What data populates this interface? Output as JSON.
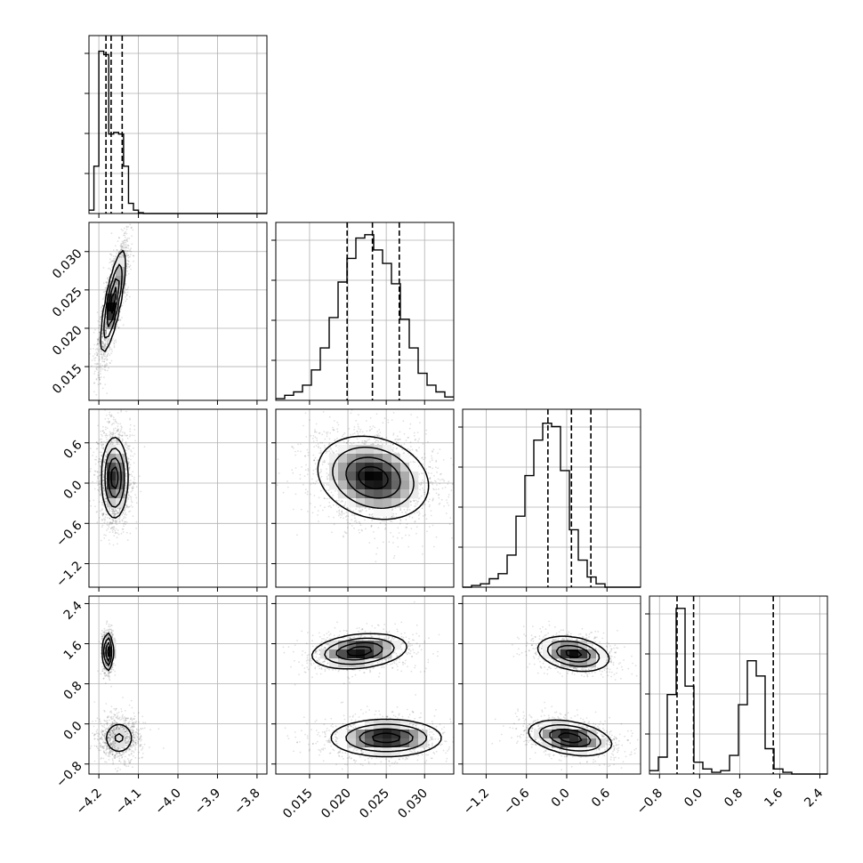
{
  "chart_data": {
    "type": "corner",
    "description_free": true,
    "parameters": [
      {
        "range": [
          -4.225,
          -3.775
        ],
        "ticks": [
          -4.2,
          -4.1,
          -4.0,
          -3.9,
          -3.8
        ],
        "tick_labels": [
          "−4.2",
          "−4.1",
          "−4.0",
          "−3.9",
          "−3.8"
        ]
      },
      {
        "range": [
          0.0106,
          0.0338
        ],
        "ticks": [
          0.015,
          0.02,
          0.025,
          0.03
        ],
        "tick_labels": [
          "0.015",
          "0.020",
          "0.025",
          "0.030"
        ]
      },
      {
        "range": [
          -1.55,
          1.1
        ],
        "ticks": [
          -1.2,
          -0.6,
          0.0,
          0.6
        ],
        "tick_labels": [
          "−1.2",
          "−0.6",
          "0.0",
          "0.6"
        ]
      },
      {
        "range": [
          -1.0,
          2.55
        ],
        "ticks": [
          -0.8,
          0.0,
          0.8,
          1.6,
          2.4
        ],
        "tick_labels": [
          "−0.8",
          "0.0",
          "0.8",
          "1.6",
          "2.4"
        ]
      }
    ],
    "histograms": [
      {
        "bin_edges_start": -4.225,
        "bin_width": 0.0125,
        "counts": [
          0.02,
          0.28,
          0.96,
          0.94,
          0.47,
          0.48,
          0.47,
          0.28,
          0.06,
          0.02,
          0.005,
          0,
          0,
          0,
          0,
          0,
          0,
          0,
          0,
          0,
          0,
          0,
          0,
          0,
          0,
          0,
          0,
          0,
          0,
          0,
          0,
          0,
          0,
          0,
          0,
          0
        ],
        "quantiles": [
          -4.182,
          -4.169,
          -4.141
        ]
      },
      {
        "bin_edges_start": 0.0106,
        "bin_width": 0.00116,
        "counts": [
          0.01,
          0.03,
          0.05,
          0.09,
          0.18,
          0.31,
          0.49,
          0.7,
          0.84,
          0.96,
          0.98,
          0.89,
          0.81,
          0.69,
          0.48,
          0.31,
          0.16,
          0.09,
          0.05,
          0.02
        ],
        "quantiles": [
          0.0199,
          0.0232,
          0.0267
        ]
      },
      {
        "bin_edges_start": -1.55,
        "bin_width": 0.1325,
        "counts": [
          0.0,
          0.01,
          0.02,
          0.05,
          0.08,
          0.19,
          0.42,
          0.66,
          0.87,
          0.97,
          0.95,
          0.69,
          0.34,
          0.16,
          0.06,
          0.02,
          0.0,
          0.0,
          0.0,
          0.0
        ],
        "quantiles": [
          -0.28,
          0.07,
          0.36
        ]
      },
      {
        "bin_edges_start": -1.0,
        "bin_width": 0.1775,
        "counts": [
          0.02,
          0.1,
          0.47,
          0.98,
          0.52,
          0.07,
          0.03,
          0.01,
          0.02,
          0.11,
          0.41,
          0.67,
          0.58,
          0.15,
          0.03,
          0.01,
          0.0,
          0.0,
          0.0,
          0.0
        ],
        "quantiles": [
          -0.45,
          -0.12,
          1.47
        ]
      }
    ],
    "blobs": {
      "1-0": [
        {
          "cx": -4.164,
          "cy": 0.0235,
          "sx": 0.015,
          "sy": 0.0032,
          "rho": 0.78,
          "w": 1.0
        }
      ],
      "2-0": [
        {
          "cx": -4.16,
          "cy": 0.08,
          "sx": 0.016,
          "sy": 0.29,
          "rho": 0.0,
          "w": 1.0
        }
      ],
      "3-0": [
        {
          "cx": -4.177,
          "cy": 1.44,
          "sx": 0.006,
          "sy": 0.18,
          "rho": 0.0,
          "w": 0.45
        },
        {
          "cx": -4.149,
          "cy": -0.28,
          "sx": 0.021,
          "sy": 0.18,
          "rho": 0.0,
          "w": 0.55
        }
      ],
      "2-1": [
        {
          "cx": 0.0233,
          "cy": 0.08,
          "sx": 0.0035,
          "sy": 0.3,
          "rho": -0.2,
          "w": 1.0
        }
      ],
      "3-1": [
        {
          "cx": 0.0215,
          "cy": 1.45,
          "sx": 0.003,
          "sy": 0.17,
          "rho": 0.25,
          "w": 0.45
        },
        {
          "cx": 0.025,
          "cy": -0.28,
          "sx": 0.0035,
          "sy": 0.18,
          "rho": 0.0,
          "w": 0.55
        }
      ],
      "3-2": [
        {
          "cx": 0.1,
          "cy": 1.4,
          "sx": 0.26,
          "sy": 0.17,
          "rho": -0.3,
          "w": 0.45
        },
        {
          "cx": 0.05,
          "cy": -0.28,
          "sx": 0.3,
          "sy": 0.17,
          "rho": -0.35,
          "w": 0.55
        }
      ]
    },
    "grid": true,
    "quantile_line_style": "dashed"
  }
}
